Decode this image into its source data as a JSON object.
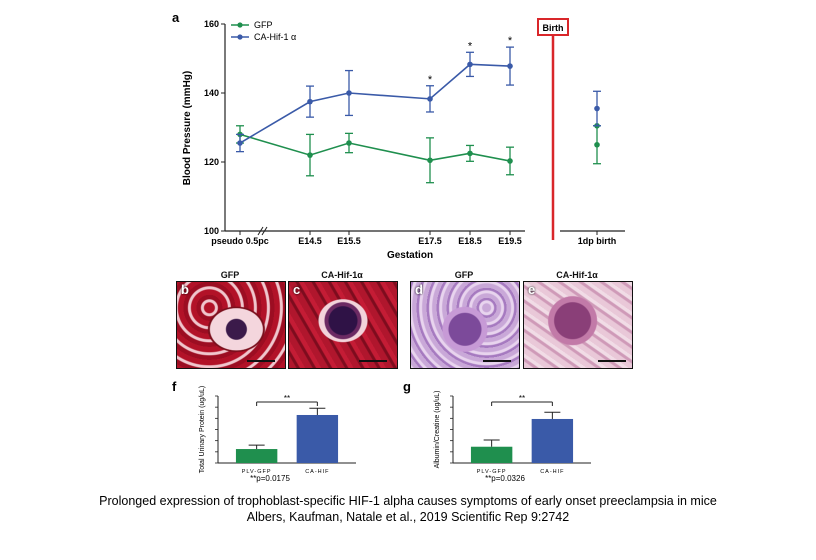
{
  "panel_a": {
    "letter": "a",
    "birth_label": "Birth",
    "significance_marker": "*"
  },
  "histology": [
    {
      "letter": "b",
      "title": "GFP",
      "stain": "PAS"
    },
    {
      "letter": "c",
      "title": "CA-Hif-1α",
      "stain": "PAS"
    },
    {
      "letter": "d",
      "title": "GFP",
      "stain": "H&E"
    },
    {
      "letter": "e",
      "title": "CA-Hif-1α",
      "stain": "H&E"
    }
  ],
  "panel_f": {
    "letter": "f",
    "significance": "**",
    "pvalue": "**p=0.0175"
  },
  "panel_g": {
    "letter": "g",
    "significance": "**",
    "pvalue": "**p=0.0326"
  },
  "caption": {
    "line1": "Prolonged expression of trophoblast-specific HIF-1 alpha causes symptoms of early onset preeclampsia in mice",
    "line2": "Albers, Kaufman, Natale et al., 2019 Scientific Rep 9:2742"
  },
  "colors": {
    "gfp": "#1f8f4e",
    "cahif": "#3a5aa8",
    "birth": "#d9262a"
  },
  "chart_data": [
    {
      "type": "line",
      "title": "",
      "xlabel": "Gestation",
      "ylabel": "Blood Pressure (mmHg)",
      "ylim": [
        100,
        160
      ],
      "yticks": [
        100,
        120,
        140,
        160
      ],
      "categories": [
        "pseudo 0.5pc",
        "E14.5",
        "E15.5",
        "E17.5",
        "E18.5",
        "E19.5",
        "1dp birth"
      ],
      "grid": false,
      "legend": "top-left",
      "series": [
        {
          "name": "GFP",
          "color": "#1f8f4e",
          "values": [
            128,
            122,
            125.5,
            120.5,
            122.5,
            120.3,
            125
          ],
          "errors": [
            2.5,
            6,
            2.8,
            6.5,
            2.3,
            4,
            5.5
          ],
          "extra_point": {
            "category": "1dp birth",
            "value": 130.5
          }
        },
        {
          "name": "CA-Hif-1 α",
          "color": "#3a5aa8",
          "values": [
            125.5,
            137.5,
            140,
            138.3,
            148.3,
            147.8,
            135.5
          ],
          "errors": [
            2.5,
            4.5,
            6.5,
            3.8,
            3.5,
            5.5,
            5
          ]
        }
      ],
      "annotations": [
        "*",
        "*",
        "*"
      ],
      "birth_line_between": [
        "E19.5",
        "1dp birth"
      ]
    },
    {
      "type": "bar",
      "ylabel": "Total Urinary Protein (ug/uL)",
      "categories": [
        "PLV-GFP",
        "CA-HIF"
      ],
      "values": [
        0.25,
        0.86
      ],
      "errors": [
        0.07,
        0.12
      ],
      "ylim": [
        0,
        1.2
      ],
      "colors": [
        "#1f8f4e",
        "#3a5aa8"
      ]
    },
    {
      "type": "bar",
      "ylabel": "Albumin/Creatine (ug/uL)",
      "categories": [
        "PLV-GFP",
        "CA-HIF"
      ],
      "values": [
        0.85,
        2.3
      ],
      "errors": [
        0.35,
        0.35
      ],
      "ylim": [
        0,
        3.5
      ],
      "colors": [
        "#1f8f4e",
        "#3a5aa8"
      ]
    }
  ]
}
